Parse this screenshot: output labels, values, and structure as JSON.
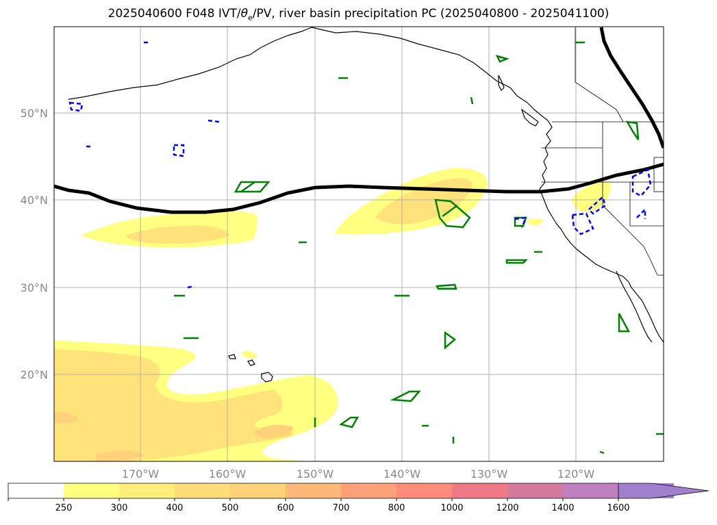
{
  "title": {
    "text": "2025040600 F048 IVT/",
    "theta": "θ",
    "sub": "e",
    "rest": "/PV, river basin precipitation PC (2025040800 - 2025041100)"
  },
  "lat_labels": [
    "50°N",
    "40°N",
    "30°N",
    "20°N"
  ],
  "lon_labels": [
    "170°W",
    "160°W",
    "150°W",
    "140°W",
    "130°W",
    "120°W"
  ],
  "colorbar": {
    "ticks": [
      "250",
      "300",
      "400",
      "500",
      "600",
      "700",
      "800",
      "1000",
      "1200",
      "1400",
      "1600"
    ],
    "colors": [
      "#ffffff",
      "#ffff80",
      "#ffee7a",
      "#ffdd78",
      "#ffd27a",
      "#ffb87a",
      "#ffa078",
      "#ff8c7a",
      "#ee7a86",
      "#d47a9c",
      "#c080c0",
      "#a080cc"
    ],
    "extend": "max"
  },
  "legend_colors": {
    "ivt_fill_low": "#ffff80",
    "ivt_fill_mid": "#ffe27a",
    "pv_contour": "#000000",
    "positive_contour": "#008000",
    "negative_contour": "#0000ff"
  }
}
